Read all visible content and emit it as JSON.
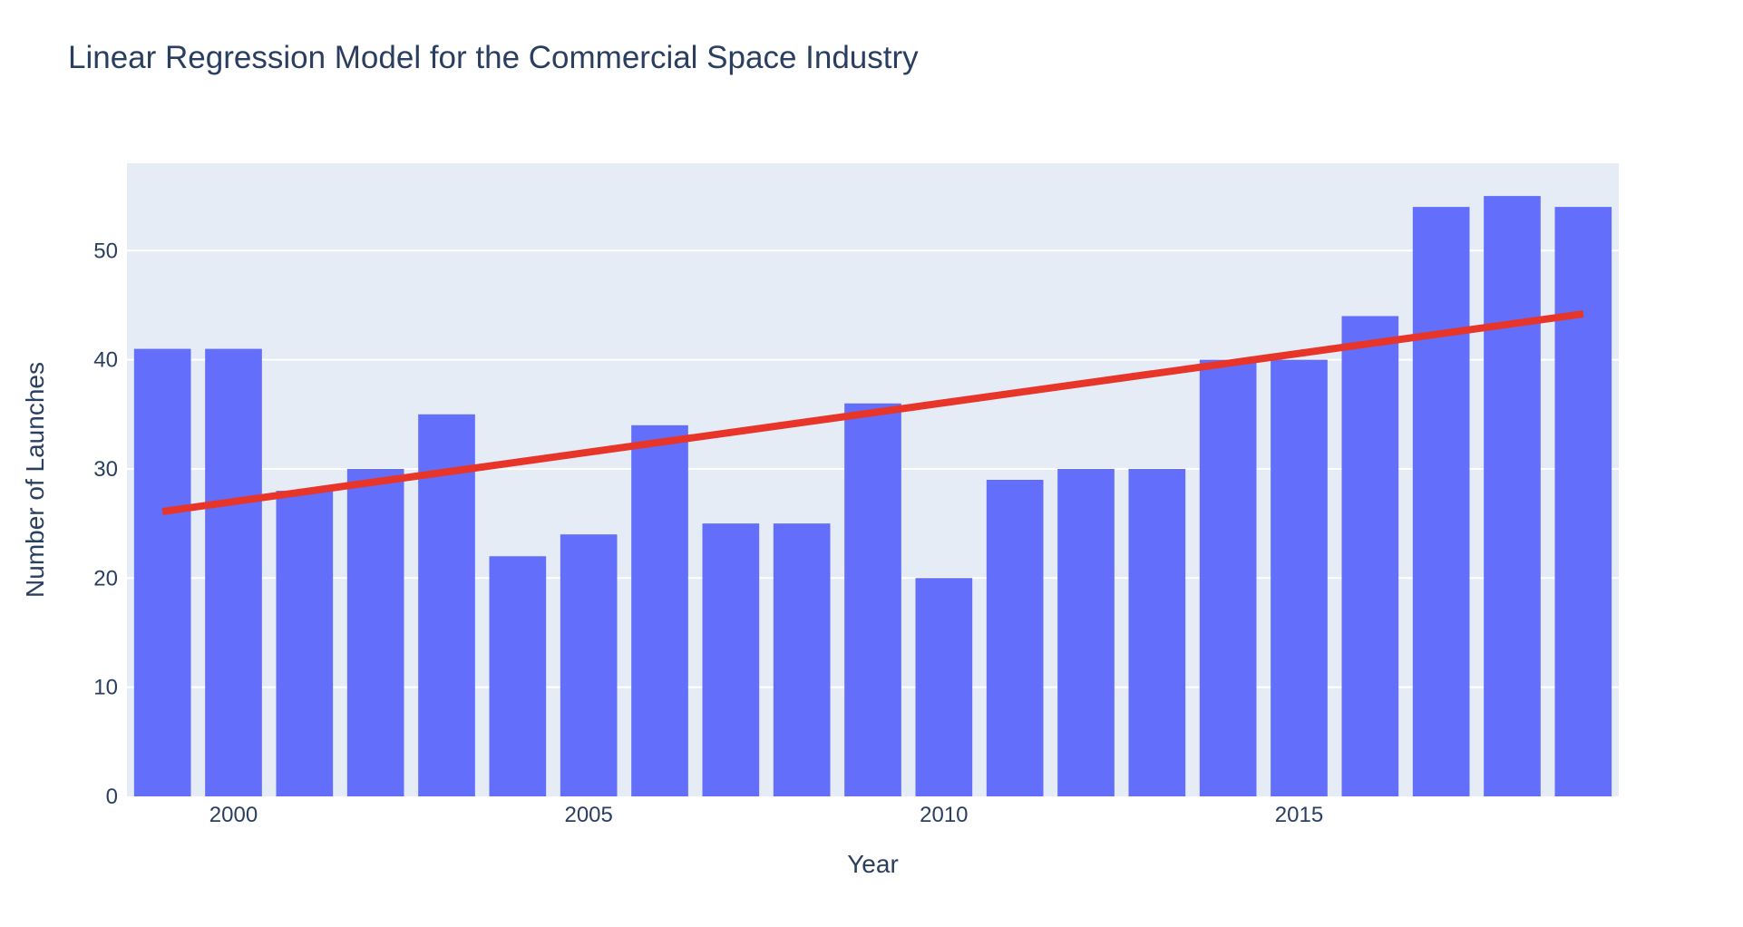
{
  "chart_data": {
    "type": "bar",
    "title": "Linear Regression Model for the Commercial Space Industry",
    "xlabel": "Year",
    "ylabel": "Number of Launches",
    "x": [
      1999,
      2000,
      2001,
      2002,
      2003,
      2004,
      2005,
      2006,
      2007,
      2008,
      2009,
      2010,
      2011,
      2012,
      2013,
      2014,
      2015,
      2016,
      2017,
      2018,
      2019
    ],
    "values": [
      41,
      41,
      28,
      30,
      35,
      22,
      24,
      34,
      25,
      25,
      36,
      20,
      29,
      30,
      30,
      40,
      40,
      44,
      54,
      55,
      54
    ],
    "trendline": {
      "x": [
        1999,
        2019
      ],
      "y": [
        26.1,
        44.2
      ]
    },
    "xlim": [
      1998.5,
      2019.5
    ],
    "ylim": [
      0,
      58
    ],
    "x_ticks": [
      2000,
      2005,
      2010,
      2015
    ],
    "y_ticks": [
      0,
      10,
      20,
      30,
      40,
      50
    ],
    "grid": true,
    "colors": {
      "bar": "#636efa",
      "trendline": "#e8352a",
      "plot_background": "#e5ecf6",
      "gridline": "#ffffff",
      "text": "#2a3f5f"
    }
  }
}
